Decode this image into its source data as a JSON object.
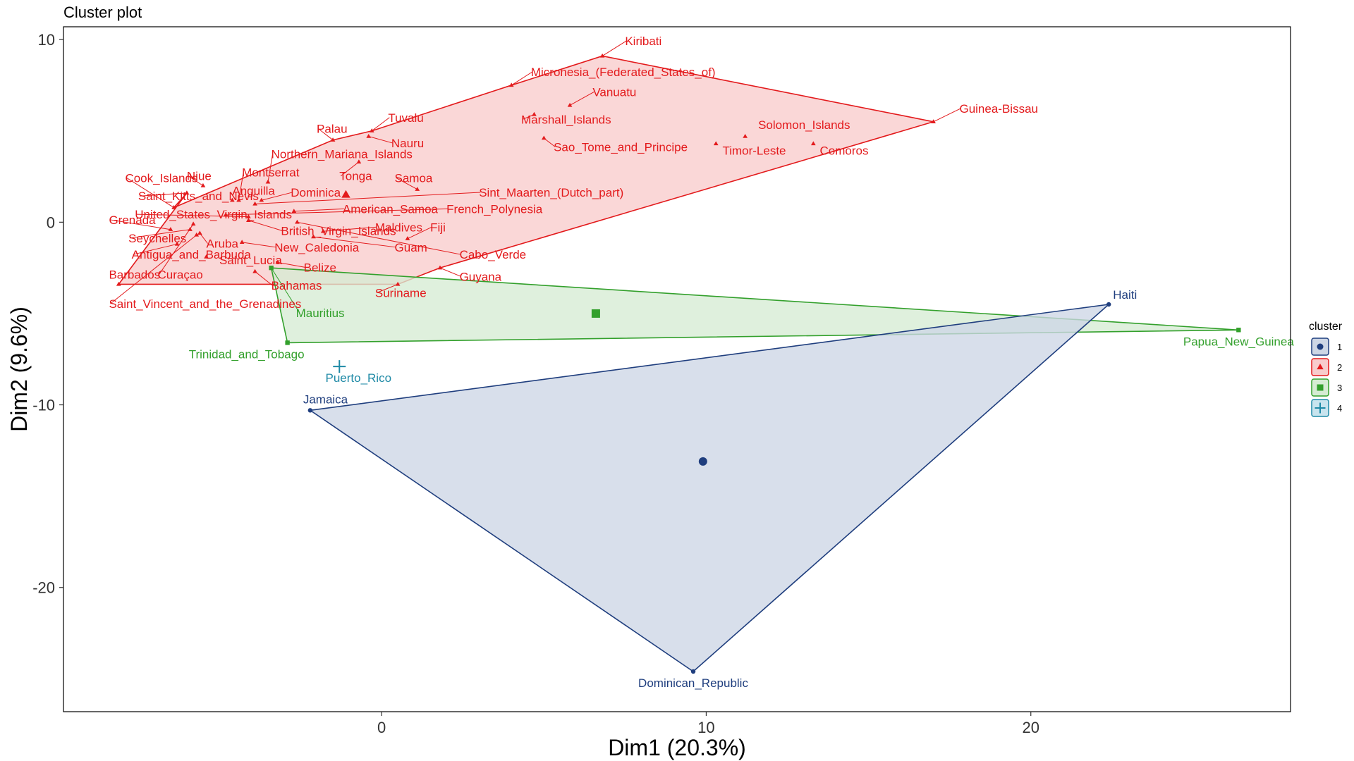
{
  "chart_data": {
    "type": "scatter",
    "title": "Cluster plot",
    "xlabel": "Dim1 (20.3%)",
    "ylabel": "Dim2 (9.6%)",
    "xlim": [
      -9.8,
      28.0
    ],
    "ylim": [
      -26.8,
      10.7
    ],
    "xticks": [
      0,
      10,
      20
    ],
    "xtick_labels": [
      "0",
      "10",
      "20"
    ],
    "yticks": [
      10,
      0,
      -10,
      -20
    ],
    "ytick_labels": [
      "10",
      "0",
      "-10",
      "-20"
    ],
    "grid": false,
    "legend": {
      "title": "cluster",
      "position": "right",
      "entries": [
        {
          "label": "1",
          "symbol": "circle"
        },
        {
          "label": "2",
          "symbol": "triangle"
        },
        {
          "label": "3",
          "symbol": "square"
        },
        {
          "label": "4",
          "symbol": "plus"
        }
      ]
    },
    "clusters": [
      {
        "name": "1",
        "color": "#1f3e7e",
        "fill": "#cdd6e5",
        "symbol": "circle",
        "center": [
          9.9,
          -13.1
        ],
        "hull": [
          "Jamaica",
          "Haiti",
          "Dominican_Republic"
        ],
        "points": [
          {
            "label": "Haiti",
            "x": 22.4,
            "y": -4.5
          },
          {
            "label": "Jamaica",
            "x": -2.2,
            "y": -10.3
          },
          {
            "label": "Dominican_Republic",
            "x": 9.6,
            "y": -24.6
          }
        ]
      },
      {
        "name": "2",
        "color": "#e31a1c",
        "fill": "#f8cccc",
        "symbol": "triangle",
        "center": [
          -1.1,
          1.5
        ],
        "hull": [
          "Kiribati",
          "Guinea-Bissau",
          "Guyana",
          "Suriname",
          "Barbados",
          "Saint_Kitts_and_Nevis",
          "Cook_Islands",
          "Palau",
          "Tuvalu",
          "Micronesia_(Federated_States_of)"
        ],
        "points": [
          {
            "label": "Kiribati",
            "x": 6.8,
            "y": 9.1
          },
          {
            "label": "Micronesia_(Federated_States_of)",
            "x": 4.0,
            "y": 7.5
          },
          {
            "label": "Vanuatu",
            "x": 5.8,
            "y": 6.4
          },
          {
            "label": "Guinea-Bissau",
            "x": 17.0,
            "y": 5.5
          },
          {
            "label": "Marshall_Islands",
            "x": 4.7,
            "y": 5.9
          },
          {
            "label": "Solomon_Islands",
            "x": 11.2,
            "y": 4.7
          },
          {
            "label": "Sao_Tome_and_Principe",
            "x": 5.0,
            "y": 4.6
          },
          {
            "label": "Timor-Leste",
            "x": 10.3,
            "y": 4.3
          },
          {
            "label": "Comoros",
            "x": 13.3,
            "y": 4.3
          },
          {
            "label": "Palau",
            "x": -1.5,
            "y": 4.5
          },
          {
            "label": "Tuvalu",
            "x": -0.3,
            "y": 5.0
          },
          {
            "label": "Nauru",
            "x": -0.4,
            "y": 4.7
          },
          {
            "label": "Northern_Mariana_Islands",
            "x": -3.5,
            "y": 2.2
          },
          {
            "label": "Montserrat",
            "x": -4.4,
            "y": 1.2
          },
          {
            "label": "Tonga",
            "x": -0.7,
            "y": 3.3
          },
          {
            "label": "Samoa",
            "x": 1.1,
            "y": 1.8
          },
          {
            "label": "Sint_Maarten_(Dutch_part)",
            "x": -3.9,
            "y": 1.0
          },
          {
            "label": "Anguilla",
            "x": -4.6,
            "y": 1.2
          },
          {
            "label": "Dominica",
            "x": -3.7,
            "y": 1.2
          },
          {
            "label": "Cook_Islands",
            "x": -6.4,
            "y": 0.8
          },
          {
            "label": "Niue",
            "x": -5.5,
            "y": 2.0
          },
          {
            "label": "Saint_Kitts_and_Nevis",
            "x": -6.0,
            "y": 1.6
          },
          {
            "label": "American_Samoa",
            "x": -2.7,
            "y": 0.6
          },
          {
            "label": "French_Polynesia",
            "x": -4.8,
            "y": 0.4
          },
          {
            "label": "United_States_Virgin_Islands",
            "x": -4.1,
            "y": 0.3
          },
          {
            "label": "Grenada",
            "x": -6.5,
            "y": -0.4
          },
          {
            "label": "British_Virgin_Islands",
            "x": -4.1,
            "y": 0.1
          },
          {
            "label": "Maldives",
            "x": -1.8,
            "y": -0.5
          },
          {
            "label": "Fiji",
            "x": 0.8,
            "y": -0.9
          },
          {
            "label": "Seychelles",
            "x": -5.9,
            "y": -0.4
          },
          {
            "label": "Aruba",
            "x": -5.6,
            "y": -0.6
          },
          {
            "label": "Guam",
            "x": -2.1,
            "y": -0.8
          },
          {
            "label": "Antigua_and_Barbuda",
            "x": -6.3,
            "y": -1.2
          },
          {
            "label": "New_Caledonia",
            "x": -4.3,
            "y": -1.1
          },
          {
            "label": "Cabo_Verde",
            "x": -2.6,
            "y": 0.0
          },
          {
            "label": "Saint_Lucia",
            "x": -5.4,
            "y": -1.9
          },
          {
            "label": "Belize",
            "x": -3.2,
            "y": -2.2
          },
          {
            "label": "Barbados",
            "x": -8.1,
            "y": -3.4
          },
          {
            "label": "Curaçao",
            "x": -5.8,
            "y": -0.1
          },
          {
            "label": "Guyana",
            "x": 1.8,
            "y": -2.5
          },
          {
            "label": "Suriname",
            "x": 0.5,
            "y": -3.4
          },
          {
            "label": "Bahamas",
            "x": -3.9,
            "y": -2.7
          },
          {
            "label": "Saint_Vincent_and_the_Grenadines",
            "x": -5.7,
            "y": -0.7
          }
        ]
      },
      {
        "name": "3",
        "color": "#33a02c",
        "fill": "#d6ecd3",
        "symbol": "square",
        "center": [
          6.6,
          -5.0
        ],
        "hull": [
          "Mauritius",
          "Papua_New_Guinea",
          "Trinidad_and_Tobago"
        ],
        "points": [
          {
            "label": "Mauritius",
            "x": -3.4,
            "y": -2.5
          },
          {
            "label": "Papua_New_Guinea",
            "x": 26.4,
            "y": -5.9
          },
          {
            "label": "Trinidad_and_Tobago",
            "x": -2.9,
            "y": -6.6
          }
        ]
      },
      {
        "name": "4",
        "color": "#1f8aa6",
        "fill": "#c8e4ee",
        "symbol": "plus",
        "center": null,
        "hull": [],
        "points": [
          {
            "label": "Puerto_Rico",
            "x": -1.3,
            "y": -7.9
          }
        ]
      }
    ],
    "label_positions": [
      {
        "x": 7.5,
        "y": 9.7
      },
      {
        "x": 4.6,
        "y": 8.0
      },
      {
        "x": 6.5,
        "y": 6.9
      },
      {
        "x": 17.8,
        "y": 6.0
      },
      {
        "x": 4.3,
        "y": 5.4
      },
      {
        "x": 11.6,
        "y": 5.1
      },
      {
        "x": 5.3,
        "y": 3.9
      },
      {
        "x": 10.5,
        "y": 3.7
      },
      {
        "x": 13.5,
        "y": 3.7
      },
      {
        "x": -2.0,
        "y": 4.9
      },
      {
        "x": 0.2,
        "y": 5.5
      },
      {
        "x": 0.3,
        "y": 4.1
      },
      {
        "x": -3.4,
        "y": 3.5
      },
      {
        "x": -4.3,
        "y": 2.5
      },
      {
        "x": -1.3,
        "y": 2.3
      },
      {
        "x": 0.4,
        "y": 2.2
      },
      {
        "x": 3.0,
        "y": 1.4
      },
      {
        "x": -4.6,
        "y": 1.5
      },
      {
        "x": -2.8,
        "y": 1.4
      },
      {
        "x": -7.9,
        "y": 2.2
      },
      {
        "x": -6.0,
        "y": 2.3
      },
      {
        "x": -7.5,
        "y": 1.2
      },
      {
        "x": -1.2,
        "y": 0.5
      },
      {
        "x": 2.0,
        "y": 0.5
      },
      {
        "x": -7.6,
        "y": 0.2
      },
      {
        "x": -8.4,
        "y": -0.1
      },
      {
        "x": -3.1,
        "y": -0.7
      },
      {
        "x": -0.2,
        "y": -0.5
      },
      {
        "x": 1.5,
        "y": -0.5
      },
      {
        "x": -7.8,
        "y": -1.1
      },
      {
        "x": -5.4,
        "y": -1.4
      },
      {
        "x": 0.4,
        "y": -1.6
      },
      {
        "x": -7.7,
        "y": -2.0
      },
      {
        "x": -3.3,
        "y": -1.6
      },
      {
        "x": 2.4,
        "y": -2.0
      },
      {
        "x": -5.0,
        "y": -2.3
      },
      {
        "x": -2.4,
        "y": -2.7
      },
      {
        "x": -8.4,
        "y": -3.1
      },
      {
        "x": -6.9,
        "y": -3.1
      },
      {
        "x": 2.4,
        "y": -3.2
      },
      {
        "x": -0.2,
        "y": -4.1
      },
      {
        "x": -3.4,
        "y": -3.7
      },
      {
        "x": -8.4,
        "y": -4.7
      }
    ]
  }
}
